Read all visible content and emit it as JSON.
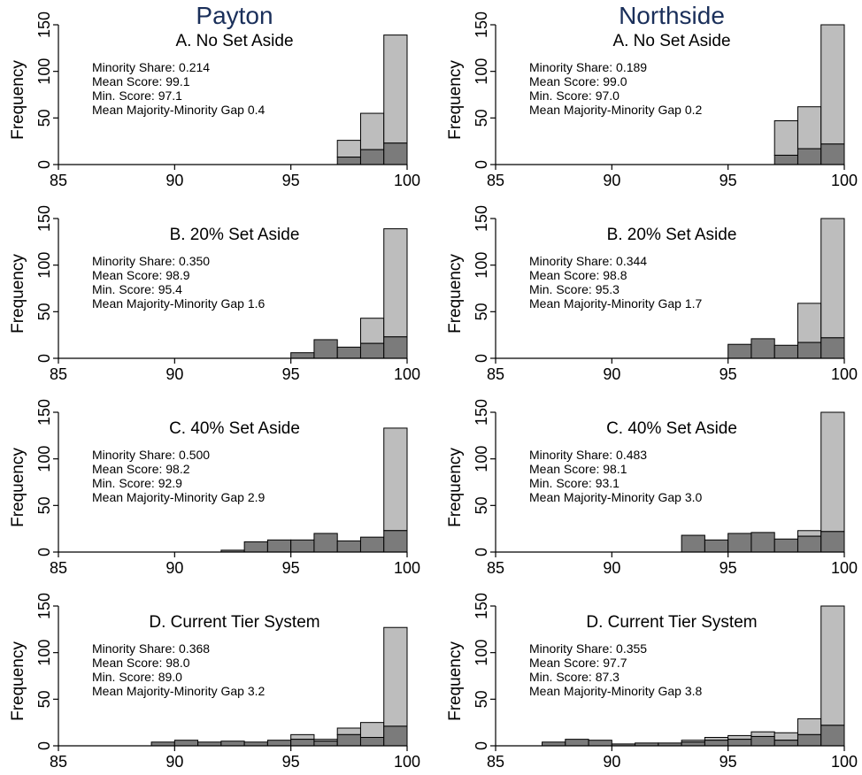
{
  "columns": [
    {
      "title": "Payton",
      "panels": [
        {
          "title": "A. No Set Aside",
          "annotations": [
            "Minority Share: 0.214",
            "Mean Score: 99.1",
            "Min. Score: 97.1",
            "Mean Majority-Minority Gap 0.4"
          ]
        },
        {
          "title": "B. 20% Set Aside",
          "annotations": [
            "Minority Share: 0.350",
            "Mean Score: 98.9",
            "Min. Score: 95.4",
            "Mean Majority-Minority Gap 1.6"
          ]
        },
        {
          "title": "C. 40% Set Aside",
          "annotations": [
            "Minority Share: 0.500",
            "Mean Score: 98.2",
            "Min. Score: 92.9",
            "Mean Majority-Minority Gap 2.9"
          ]
        },
        {
          "title": "D. Current Tier System",
          "annotations": [
            "Minority Share: 0.368",
            "Mean Score: 98.0",
            "Min. Score: 89.0",
            "Mean Majority-Minority Gap 3.2"
          ]
        }
      ]
    },
    {
      "title": "Northside",
      "panels": [
        {
          "title": "A. No Set Aside",
          "annotations": [
            "Minority Share: 0.189",
            "Mean Score: 99.0",
            "Min. Score: 97.0",
            "Mean Majority-Minority Gap 0.2"
          ]
        },
        {
          "title": "B. 20% Set Aside",
          "annotations": [
            "Minority Share: 0.344",
            "Mean Score: 98.8",
            "Min. Score: 95.3",
            "Mean Majority-Minority Gap 1.7"
          ]
        },
        {
          "title": "C. 40% Set Aside",
          "annotations": [
            "Minority Share: 0.483",
            "Mean Score: 98.1",
            "Min. Score: 93.1",
            "Mean Majority-Minority Gap 3.0"
          ]
        },
        {
          "title": "D. Current Tier System",
          "annotations": [
            "Minority Share: 0.355",
            "Mean Score: 97.7",
            "Min. Score: 87.3",
            "Mean Majority-Minority Gap 3.8"
          ]
        }
      ]
    }
  ],
  "colors": {
    "total_bar": "#bdbdbd",
    "minority_bar": "#7b7b7b",
    "column_title": "#1a2f5a"
  },
  "chart_data": [
    {
      "type": "bar",
      "column": "Payton",
      "title": "A. No Set Aside",
      "ylabel": "Frequency",
      "xlim": [
        85,
        100
      ],
      "ylim": [
        0,
        150
      ],
      "xticks": [
        85,
        90,
        95,
        100
      ],
      "yticks": [
        0,
        50,
        100,
        150
      ],
      "grid": false,
      "bin_width": 1,
      "bins": [
        97,
        98,
        99
      ],
      "total": [
        26,
        55,
        139
      ],
      "minority": [
        8,
        16,
        23
      ]
    },
    {
      "type": "bar",
      "column": "Payton",
      "title": "B. 20% Set Aside",
      "ylabel": "Frequency",
      "xlim": [
        85,
        100
      ],
      "ylim": [
        0,
        150
      ],
      "xticks": [
        85,
        90,
        95,
        100
      ],
      "yticks": [
        0,
        50,
        100,
        150
      ],
      "grid": false,
      "bin_width": 1,
      "bins": [
        95,
        96,
        97,
        98,
        99
      ],
      "total": [
        6,
        20,
        12,
        43,
        139
      ],
      "minority": [
        6,
        20,
        12,
        16,
        23
      ]
    },
    {
      "type": "bar",
      "column": "Payton",
      "title": "C. 40% Set Aside",
      "ylabel": "Frequency",
      "xlim": [
        85,
        100
      ],
      "ylim": [
        0,
        150
      ],
      "xticks": [
        85,
        90,
        95,
        100
      ],
      "yticks": [
        0,
        50,
        100,
        150
      ],
      "grid": false,
      "bin_width": 1,
      "bins": [
        92,
        93,
        94,
        95,
        96,
        97,
        98,
        99
      ],
      "total": [
        2,
        11,
        13,
        13,
        20,
        12,
        16,
        133
      ],
      "minority": [
        2,
        11,
        13,
        13,
        20,
        12,
        16,
        23
      ]
    },
    {
      "type": "bar",
      "column": "Payton",
      "title": "D. Current Tier System",
      "ylabel": "Frequency",
      "xlim": [
        85,
        100
      ],
      "ylim": [
        0,
        150
      ],
      "xticks": [
        85,
        90,
        95,
        100
      ],
      "yticks": [
        0,
        50,
        100,
        150
      ],
      "grid": false,
      "bin_width": 1,
      "bins": [
        89,
        90,
        91,
        92,
        93,
        94,
        95,
        96,
        97,
        98,
        99
      ],
      "total": [
        4,
        6,
        4,
        5,
        4,
        6,
        12,
        7,
        19,
        25,
        127
      ],
      "minority": [
        4,
        6,
        4,
        5,
        4,
        6,
        7,
        5,
        12,
        9,
        21
      ]
    },
    {
      "type": "bar",
      "column": "Northside",
      "title": "A. No Set Aside",
      "ylabel": "Frequency",
      "xlim": [
        85,
        100
      ],
      "ylim": [
        0,
        150
      ],
      "xticks": [
        85,
        90,
        95,
        100
      ],
      "yticks": [
        0,
        50,
        100,
        150
      ],
      "grid": false,
      "bin_width": 1,
      "bins": [
        97,
        98,
        99
      ],
      "total": [
        47,
        62,
        150
      ],
      "minority": [
        10,
        17,
        22
      ]
    },
    {
      "type": "bar",
      "column": "Northside",
      "title": "B. 20% Set Aside",
      "ylabel": "Frequency",
      "xlim": [
        85,
        100
      ],
      "ylim": [
        0,
        150
      ],
      "xticks": [
        85,
        90,
        95,
        100
      ],
      "yticks": [
        0,
        50,
        100,
        150
      ],
      "grid": false,
      "bin_width": 1,
      "bins": [
        95,
        96,
        97,
        98,
        99
      ],
      "total": [
        15,
        21,
        14,
        59,
        150
      ],
      "minority": [
        15,
        21,
        14,
        17,
        22
      ]
    },
    {
      "type": "bar",
      "column": "Northside",
      "title": "C. 40% Set Aside",
      "ylabel": "Frequency",
      "xlim": [
        85,
        100
      ],
      "ylim": [
        0,
        150
      ],
      "xticks": [
        85,
        90,
        95,
        100
      ],
      "yticks": [
        0,
        50,
        100,
        150
      ],
      "grid": false,
      "bin_width": 1,
      "bins": [
        93,
        94,
        95,
        96,
        97,
        98,
        99
      ],
      "total": [
        18,
        13,
        20,
        21,
        14,
        23,
        150
      ],
      "minority": [
        18,
        13,
        20,
        21,
        14,
        17,
        22
      ]
    },
    {
      "type": "bar",
      "column": "Northside",
      "title": "D. Current Tier System",
      "ylabel": "Frequency",
      "xlim": [
        85,
        100
      ],
      "ylim": [
        0,
        150
      ],
      "xticks": [
        85,
        90,
        95,
        100
      ],
      "yticks": [
        0,
        50,
        100,
        150
      ],
      "grid": false,
      "bin_width": 1,
      "bins": [
        87,
        88,
        89,
        90,
        91,
        92,
        93,
        94,
        95,
        96,
        97,
        98,
        99
      ],
      "total": [
        4,
        7,
        6,
        2,
        3,
        3,
        6,
        9,
        11,
        15,
        14,
        29,
        150
      ],
      "minority": [
        4,
        7,
        6,
        2,
        3,
        3,
        4,
        6,
        7,
        10,
        6,
        12,
        22
      ]
    }
  ]
}
